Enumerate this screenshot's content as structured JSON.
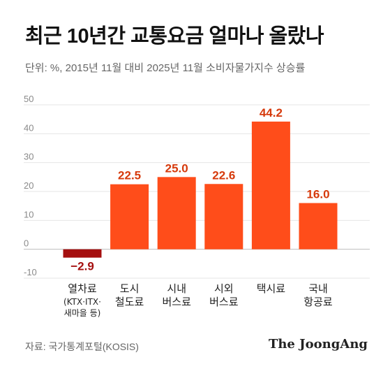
{
  "header": {
    "title": "최근 10년간 교통요금 얼마나 올랐나",
    "subtitle": "단위: %, 2015년 11월 대비 2025년 11월 소비자물가지수 상승률"
  },
  "footer": {
    "source": "자료: 국가통계포털(KOSIS)",
    "brand": "The JoongAng"
  },
  "colors": {
    "positive": "#ff4d1a",
    "negative": "#a50f0f",
    "label_positive": "#d63a0c",
    "label_negative": "#a50f0f",
    "grid": "#e6e6e6"
  },
  "chart_data": {
    "type": "bar",
    "title": "최근 10년간 교통요금 얼마나 올랐나",
    "ylabel": "",
    "xlabel": "",
    "ylim": [
      -10,
      50
    ],
    "yticks": [
      "50",
      "40",
      "30",
      "20",
      "10",
      "0",
      "-10"
    ],
    "grid": true,
    "categories": [
      {
        "lines": [
          "열차료"
        ],
        "note": [
          "(KTX·ITX·",
          "새마을 등)"
        ]
      },
      {
        "lines": [
          "도시",
          "철도료"
        ],
        "note": []
      },
      {
        "lines": [
          "시내",
          "버스료"
        ],
        "note": []
      },
      {
        "lines": [
          "시외",
          "버스료"
        ],
        "note": []
      },
      {
        "lines": [
          "택시료"
        ],
        "note": []
      },
      {
        "lines": [
          "국내",
          "항공료"
        ],
        "note": []
      }
    ],
    "values": [
      -2.9,
      22.5,
      25.0,
      22.6,
      44.2,
      16.0
    ],
    "value_labels": [
      "−2.9",
      "22.5",
      "25.0",
      "22.6",
      "44.2",
      "16.0"
    ]
  }
}
